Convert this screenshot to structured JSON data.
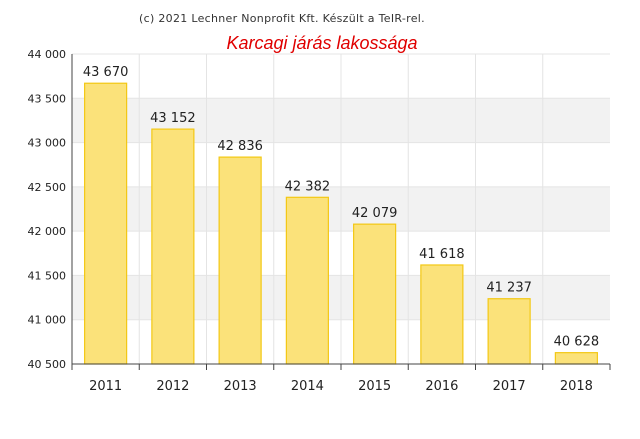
{
  "credit": "(c) 2021 Lechner Nonprofit Kft. Készült a TeIR-rel.",
  "colors": {
    "title": "#e00000",
    "bar_fill": "#fbe27a",
    "bar_stroke": "#f3c814",
    "band": "#f2f2f2",
    "grid": "#e4e4e4",
    "axis": "#444444"
  },
  "chart_data": {
    "type": "bar",
    "title": "Karcagi járás lakossága",
    "xlabel": "",
    "ylabel": "",
    "categories": [
      "2011",
      "2012",
      "2013",
      "2014",
      "2015",
      "2016",
      "2017",
      "2018"
    ],
    "values": [
      43670,
      43152,
      42836,
      42382,
      42079,
      41618,
      41237,
      40628
    ],
    "value_labels": [
      "43 670",
      "43 152",
      "42 836",
      "42 382",
      "42 079",
      "41 618",
      "41 237",
      "40 628"
    ],
    "ylim": [
      40500,
      44000
    ],
    "yticks": [
      40500,
      41000,
      41500,
      42000,
      42500,
      43000,
      43500,
      44000
    ],
    "ytick_labels": [
      "40 500",
      "41 000",
      "41 500",
      "42 000",
      "42 500",
      "43 000",
      "43 500",
      "44 000"
    ],
    "grid": true,
    "legend": false
  }
}
